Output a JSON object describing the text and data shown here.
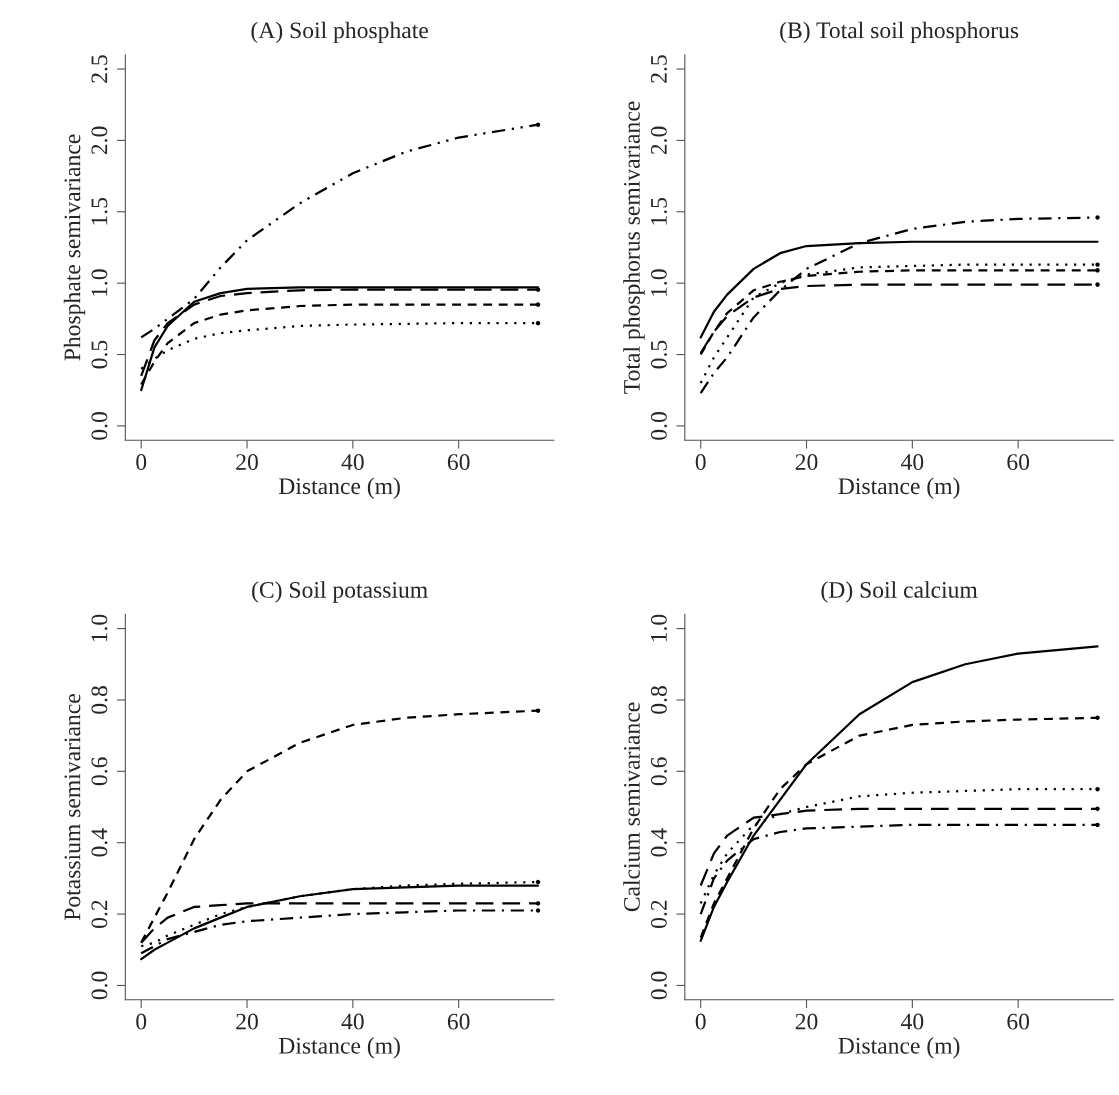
{
  "chart_data": [
    {
      "type": "line",
      "title": "(A) Soil phosphate",
      "xlabel": "Distance (m)",
      "ylabel": "Phosphate semivariance",
      "x": [
        0,
        2.5,
        5,
        10,
        15,
        20,
        30,
        40,
        50,
        60,
        75
      ],
      "xlim": [
        -3,
        78
      ],
      "xticks": [
        0,
        20,
        40,
        60
      ],
      "ylim": [
        -0.1,
        2.6
      ],
      "yticks": [
        {
          "value": 0,
          "label": "0.0"
        },
        0.5,
        {
          "value": 1,
          "label": "1.0"
        },
        1.5,
        {
          "value": 2,
          "label": "2.0"
        },
        2.5
      ],
      "grid": false,
      "legend": false,
      "marker": "none",
      "series": [
        {
          "color": "#000000",
          "line_style": "solid",
          "values": [
            0.25,
            0.55,
            0.7,
            0.87,
            0.93,
            0.96,
            0.97,
            0.97,
            0.97,
            0.97,
            0.97
          ]
        },
        {
          "color": "#000000",
          "line_style": "longdash",
          "values": [
            0.35,
            0.6,
            0.72,
            0.85,
            0.91,
            0.93,
            0.95,
            0.955,
            0.955,
            0.955,
            0.955
          ]
        },
        {
          "color": "#000000",
          "line_style": "dashed",
          "values": [
            0.29,
            0.45,
            0.58,
            0.72,
            0.78,
            0.81,
            0.84,
            0.85,
            0.85,
            0.85,
            0.85
          ]
        },
        {
          "color": "#000000",
          "line_style": "dotted",
          "values": [
            0.4,
            0.47,
            0.53,
            0.61,
            0.65,
            0.67,
            0.7,
            0.71,
            0.715,
            0.72,
            0.72
          ]
        },
        {
          "color": "#000000",
          "line_style": "dashdotdot",
          "values": [
            0.62,
            0.68,
            0.75,
            0.89,
            1.11,
            1.3,
            1.56,
            1.77,
            1.92,
            2.02,
            2.11
          ]
        }
      ]
    },
    {
      "type": "line",
      "title": "(B) Total soil phosphorus",
      "xlabel": "Distance (m)",
      "ylabel": "Total phosphorus semivariance",
      "x": [
        0,
        2.5,
        5,
        10,
        15,
        20,
        30,
        40,
        50,
        60,
        75
      ],
      "xlim": [
        -3,
        78
      ],
      "xticks": [
        0,
        20,
        40,
        60
      ],
      "ylim": [
        -0.1,
        2.6
      ],
      "yticks": [
        {
          "value": 0,
          "label": "0.0"
        },
        0.5,
        {
          "value": 1,
          "label": "1.0"
        },
        1.5,
        {
          "value": 2,
          "label": "2.0"
        },
        2.5
      ],
      "grid": false,
      "legend": false,
      "marker": "none",
      "series": [
        {
          "color": "#000000",
          "line_style": "solid",
          "values": [
            0.62,
            0.8,
            0.92,
            1.1,
            1.21,
            1.26,
            1.28,
            1.29,
            1.29,
            1.29,
            1.29
          ]
        },
        {
          "color": "#000000",
          "line_style": "longdash",
          "values": [
            0.51,
            0.66,
            0.77,
            0.9,
            0.96,
            0.98,
            0.99,
            0.99,
            0.99,
            0.99,
            0.99
          ]
        },
        {
          "color": "#000000",
          "line_style": "dashed",
          "values": [
            0.5,
            0.66,
            0.79,
            0.95,
            1.01,
            1.05,
            1.08,
            1.09,
            1.09,
            1.09,
            1.09
          ]
        },
        {
          "color": "#000000",
          "line_style": "dotted",
          "values": [
            0.3,
            0.48,
            0.62,
            0.9,
            1.0,
            1.06,
            1.11,
            1.12,
            1.13,
            1.13,
            1.13
          ]
        },
        {
          "color": "#000000",
          "line_style": "dashdot",
          "values": [
            0.23,
            0.37,
            0.48,
            0.76,
            0.95,
            1.1,
            1.28,
            1.38,
            1.43,
            1.45,
            1.46
          ]
        }
      ]
    },
    {
      "type": "line",
      "title": "(C) Soil potassium",
      "xlabel": "Distance (m)",
      "ylabel": "Potassium semivariance",
      "x": [
        0,
        2.5,
        5,
        10,
        15,
        20,
        30,
        40,
        50,
        60,
        75
      ],
      "xlim": [
        -3,
        78
      ],
      "xticks": [
        0,
        20,
        40,
        60
      ],
      "ylim": [
        -0.04,
        1.04
      ],
      "yticks": [
        {
          "value": 0,
          "label": "0.0"
        },
        0.2,
        0.4,
        0.6,
        0.8,
        {
          "value": 1,
          "label": "1.0"
        }
      ],
      "grid": false,
      "legend": false,
      "marker": "none",
      "series": [
        {
          "color": "#000000",
          "line_style": "dashed",
          "values": [
            0.12,
            0.19,
            0.26,
            0.41,
            0.52,
            0.6,
            0.68,
            0.73,
            0.75,
            0.76,
            0.77
          ]
        },
        {
          "color": "#000000",
          "line_style": "solid",
          "values": [
            0.074,
            0.1,
            0.12,
            0.16,
            0.19,
            0.22,
            0.25,
            0.27,
            0.275,
            0.28,
            0.28
          ]
        },
        {
          "color": "#000000",
          "line_style": "dotted",
          "values": [
            0.11,
            0.12,
            0.14,
            0.17,
            0.2,
            0.22,
            0.25,
            0.27,
            0.28,
            0.285,
            0.29
          ]
        },
        {
          "color": "#000000",
          "line_style": "longdash",
          "values": [
            0.12,
            0.16,
            0.19,
            0.22,
            0.225,
            0.23,
            0.23,
            0.23,
            0.23,
            0.23,
            0.23
          ]
        },
        {
          "color": "#000000",
          "line_style": "dashdot",
          "values": [
            0.09,
            0.11,
            0.13,
            0.15,
            0.17,
            0.18,
            0.19,
            0.2,
            0.205,
            0.21,
            0.21
          ]
        }
      ]
    },
    {
      "type": "line",
      "title": "(D) Soil calcium",
      "xlabel": "Distance (m)",
      "ylabel": "Calcium semivariance",
      "x": [
        0,
        2.5,
        5,
        10,
        15,
        20,
        30,
        40,
        50,
        60,
        75
      ],
      "xlim": [
        -3,
        78
      ],
      "xticks": [
        0,
        20,
        40,
        60
      ],
      "ylim": [
        -0.04,
        1.04
      ],
      "yticks": [
        {
          "value": 0,
          "label": "0.0"
        },
        0.2,
        0.4,
        0.6,
        0.8,
        {
          "value": 1,
          "label": "1.0"
        }
      ],
      "grid": false,
      "legend": false,
      "marker": "none",
      "series": [
        {
          "color": "#000000",
          "line_style": "solid",
          "values": [
            0.125,
            0.22,
            0.29,
            0.42,
            0.52,
            0.62,
            0.76,
            0.85,
            0.9,
            0.93,
            0.95
          ]
        },
        {
          "color": "#000000",
          "line_style": "dashed",
          "values": [
            0.134,
            0.23,
            0.3,
            0.44,
            0.55,
            0.62,
            0.7,
            0.73,
            0.74,
            0.745,
            0.75
          ]
        },
        {
          "color": "#000000",
          "line_style": "dotted",
          "values": [
            0.23,
            0.31,
            0.37,
            0.45,
            0.48,
            0.5,
            0.53,
            0.54,
            0.545,
            0.55,
            0.55
          ]
        },
        {
          "color": "#000000",
          "line_style": "longdash",
          "values": [
            0.28,
            0.37,
            0.42,
            0.47,
            0.48,
            0.49,
            0.495,
            0.495,
            0.495,
            0.495,
            0.495
          ]
        },
        {
          "color": "#000000",
          "line_style": "dashdot",
          "values": [
            0.2,
            0.3,
            0.35,
            0.41,
            0.43,
            0.44,
            0.445,
            0.45,
            0.45,
            0.45,
            0.45
          ]
        }
      ]
    }
  ]
}
